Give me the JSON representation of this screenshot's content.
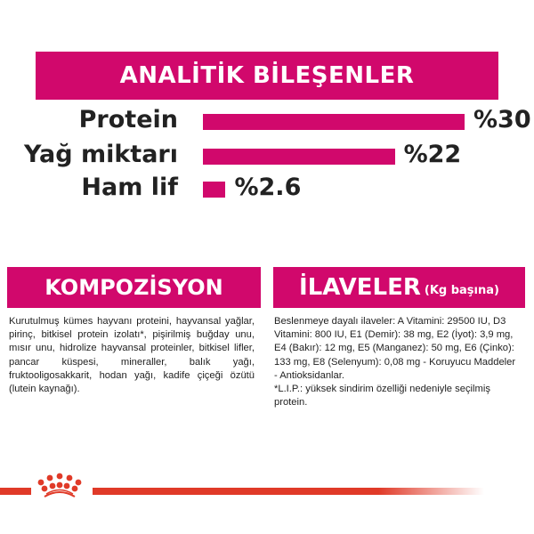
{
  "header": {
    "title": "ANALİTİK BİLEŞENLER"
  },
  "chart_data": {
    "type": "bar",
    "categories": [
      "Protein",
      "Yağ miktarı",
      "Ham lif"
    ],
    "values": [
      30,
      22,
      2.6
    ],
    "value_labels": [
      "%30",
      "%22",
      "%2.6"
    ]
  },
  "composition": {
    "title": "KOMPOZİSYON",
    "text": "Kurutulmuş kümes hayvanı proteini, hayvansal yağlar, pirinç, bitkisel protein izolatı*, pişirilmiş buğday unu, mısır unu, hidrolize hayvansal proteinler, bitkisel lifler, pancar küspesi, mineraller, balık yağı, fruktooligosakkarit, hodan yağı, kadife çiçeği özütü (lutein kaynağı)."
  },
  "additives": {
    "title": "İLAVELER",
    "subtitle": "(Kg başına)",
    "text": "Beslenmeye dayalı ilaveler: A Vitamini: 29500 IU, D3 Vitamini: 800 IU, E1 (Demir): 38 mg, E2 (İyot): 3,9 mg, E4 (Bakır): 12 mg, E5 (Manganez): 50 mg, E6 (Çinko): 133 mg, E8 (Selenyum): 0,08 mg - Koruyucu Maddeler - Antioksidanlar.",
    "note": "*L.I.P.: yüksek sindirim özelliği nedeniyle seçilmiş protein."
  },
  "colors": {
    "accent": "#d1086c",
    "brand_red": "#e03a28"
  },
  "logo": {
    "icon": "royal-canin-crown-icon"
  }
}
